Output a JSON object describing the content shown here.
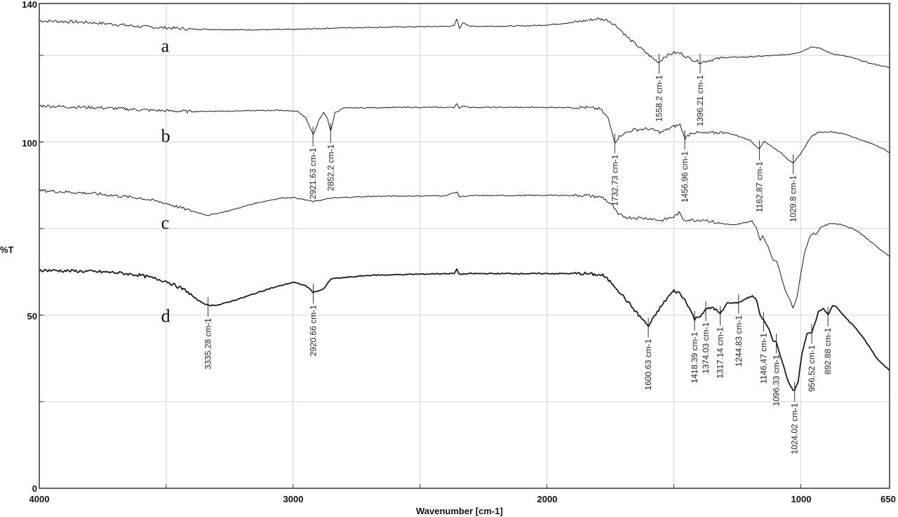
{
  "chart_data": {
    "type": "line",
    "title": "",
    "xlabel": "Wavenumber [cm-1]",
    "ylabel": "%T",
    "xlim": [
      4000,
      650
    ],
    "ylim": [
      0,
      140
    ],
    "x_reversed": true,
    "grid": true,
    "x_ticks": [
      4000,
      3000,
      2000,
      1000,
      650
    ],
    "x_minor_ticks": [
      3500,
      2500,
      1500
    ],
    "y_ticks": [
      0,
      50,
      100,
      140
    ],
    "y_grid": [
      25,
      50,
      75,
      100,
      125
    ],
    "series": [
      {
        "name": "a",
        "stroke_width": 1,
        "points": [
          [
            4000,
            135
          ],
          [
            3900,
            134.8
          ],
          [
            3800,
            134.5
          ],
          [
            3700,
            134
          ],
          [
            3600,
            133.3
          ],
          [
            3500,
            133
          ],
          [
            3400,
            132.6
          ],
          [
            3200,
            132.4
          ],
          [
            3000,
            132.5
          ],
          [
            2800,
            133
          ],
          [
            2600,
            133.2
          ],
          [
            2400,
            133.4
          ],
          [
            2365,
            133.6
          ],
          [
            2355,
            135.5
          ],
          [
            2345,
            132.8
          ],
          [
            2330,
            134.5
          ],
          [
            2300,
            133.4
          ],
          [
            2100,
            133.5
          ],
          [
            2000,
            133.8
          ],
          [
            1900,
            134.5
          ],
          [
            1800,
            135.6
          ],
          [
            1760,
            135.2
          ],
          [
            1720,
            133.2
          ],
          [
            1680,
            130
          ],
          [
            1630,
            127
          ],
          [
            1580,
            124
          ],
          [
            1558,
            123
          ],
          [
            1540,
            124.5
          ],
          [
            1500,
            125.8
          ],
          [
            1470,
            125.5
          ],
          [
            1440,
            124.2
          ],
          [
            1396,
            123
          ],
          [
            1360,
            123.6
          ],
          [
            1300,
            124.4
          ],
          [
            1200,
            124.6
          ],
          [
            1100,
            125
          ],
          [
            1050,
            125.3
          ],
          [
            1000,
            126
          ],
          [
            960,
            127.5
          ],
          [
            930,
            127.2
          ],
          [
            880,
            125.6
          ],
          [
            800,
            124.4
          ],
          [
            730,
            122.8
          ],
          [
            650,
            121.5
          ]
        ],
        "label": {
          "text": "a",
          "wavenumber": 3520,
          "t": 126
        }
      },
      {
        "name": "b",
        "stroke_width": 1,
        "points": [
          [
            4000,
            110.5
          ],
          [
            3900,
            110.2
          ],
          [
            3800,
            110
          ],
          [
            3700,
            109.7
          ],
          [
            3600,
            109.3
          ],
          [
            3500,
            109
          ],
          [
            3400,
            108.8
          ],
          [
            3200,
            109
          ],
          [
            3050,
            109.2
          ],
          [
            2980,
            108.8
          ],
          [
            2950,
            107
          ],
          [
            2921,
            102
          ],
          [
            2900,
            106
          ],
          [
            2880,
            108.5
          ],
          [
            2865,
            107
          ],
          [
            2852,
            103
          ],
          [
            2835,
            108.5
          ],
          [
            2800,
            109.8
          ],
          [
            2600,
            110
          ],
          [
            2400,
            110
          ],
          [
            2365,
            110
          ],
          [
            2355,
            111.2
          ],
          [
            2345,
            109.6
          ],
          [
            2330,
            110.5
          ],
          [
            2300,
            110
          ],
          [
            2000,
            110
          ],
          [
            1850,
            110
          ],
          [
            1790,
            109.5
          ],
          [
            1760,
            107
          ],
          [
            1732,
            100
          ],
          [
            1710,
            102
          ],
          [
            1660,
            103.5
          ],
          [
            1600,
            103.8
          ],
          [
            1550,
            102.8
          ],
          [
            1500,
            104.5
          ],
          [
            1475,
            105
          ],
          [
            1456,
            101
          ],
          [
            1430,
            102.8
          ],
          [
            1380,
            102.5
          ],
          [
            1300,
            102.8
          ],
          [
            1250,
            101.8
          ],
          [
            1200,
            100.5
          ],
          [
            1162,
            98
          ],
          [
            1145,
            100.3
          ],
          [
            1120,
            99
          ],
          [
            1080,
            97
          ],
          [
            1050,
            95
          ],
          [
            1029,
            94
          ],
          [
            1000,
            96.5
          ],
          [
            960,
            101.5
          ],
          [
            930,
            102.8
          ],
          [
            880,
            103
          ],
          [
            820,
            102.2
          ],
          [
            760,
            100.5
          ],
          [
            700,
            99
          ],
          [
            650,
            97
          ]
        ],
        "label": {
          "text": "b",
          "wavenumber": 3520,
          "t": 100
        }
      },
      {
        "name": "c",
        "stroke_width": 1,
        "points": [
          [
            4000,
            86
          ],
          [
            3900,
            85.6
          ],
          [
            3800,
            85.2
          ],
          [
            3700,
            84.5
          ],
          [
            3600,
            83.8
          ],
          [
            3500,
            82.3
          ],
          [
            3420,
            80.5
          ],
          [
            3335,
            78.8
          ],
          [
            3250,
            80.2
          ],
          [
            3150,
            82.3
          ],
          [
            3050,
            83.8
          ],
          [
            3000,
            84
          ],
          [
            2920,
            82.8
          ],
          [
            2850,
            83.8
          ],
          [
            2700,
            84.3
          ],
          [
            2400,
            84.5
          ],
          [
            2355,
            85.6
          ],
          [
            2345,
            84.2
          ],
          [
            2300,
            84.5
          ],
          [
            2000,
            84.6
          ],
          [
            1850,
            84.6
          ],
          [
            1780,
            84
          ],
          [
            1740,
            81.5
          ],
          [
            1720,
            79
          ],
          [
            1680,
            78.2
          ],
          [
            1600,
            78
          ],
          [
            1550,
            77.3
          ],
          [
            1500,
            78.4
          ],
          [
            1480,
            79.5
          ],
          [
            1460,
            77.6
          ],
          [
            1420,
            77.4
          ],
          [
            1380,
            77.6
          ],
          [
            1330,
            76.6
          ],
          [
            1260,
            76
          ],
          [
            1220,
            76.7
          ],
          [
            1192,
            77.2
          ],
          [
            1175,
            75.2
          ],
          [
            1160,
            71.6
          ],
          [
            1150,
            73
          ],
          [
            1130,
            70
          ],
          [
            1110,
            66
          ],
          [
            1095,
            65.7
          ],
          [
            1080,
            62
          ],
          [
            1060,
            57
          ],
          [
            1040,
            54
          ],
          [
            1030,
            52
          ],
          [
            1015,
            55
          ],
          [
            1000,
            62
          ],
          [
            985,
            68
          ],
          [
            965,
            72.5
          ],
          [
            950,
            73.8
          ],
          [
            940,
            73.2
          ],
          [
            920,
            75.5
          ],
          [
            880,
            76.5
          ],
          [
            840,
            76.2
          ],
          [
            780,
            74.5
          ],
          [
            720,
            71
          ],
          [
            680,
            68.5
          ],
          [
            650,
            67
          ]
        ],
        "label": {
          "text": "c",
          "wavenumber": 3520,
          "t": 75
        }
      },
      {
        "name": "d",
        "stroke_width": 1.8,
        "points": [
          [
            4000,
            63
          ],
          [
            3900,
            62.8
          ],
          [
            3800,
            62.6
          ],
          [
            3700,
            62.3
          ],
          [
            3600,
            61.5
          ],
          [
            3500,
            59.8
          ],
          [
            3420,
            57
          ],
          [
            3380,
            54.5
          ],
          [
            3335,
            52.8
          ],
          [
            3290,
            53
          ],
          [
            3200,
            55
          ],
          [
            3100,
            57.5
          ],
          [
            3000,
            59.5
          ],
          [
            2950,
            58.5
          ],
          [
            2920,
            56.6
          ],
          [
            2880,
            57.5
          ],
          [
            2850,
            60.5
          ],
          [
            2700,
            61.5
          ],
          [
            2400,
            62
          ],
          [
            2365,
            62
          ],
          [
            2355,
            63.2
          ],
          [
            2345,
            61.8
          ],
          [
            2300,
            62
          ],
          [
            2000,
            62
          ],
          [
            1850,
            62
          ],
          [
            1780,
            61.5
          ],
          [
            1740,
            59
          ],
          [
            1700,
            55.5
          ],
          [
            1650,
            51
          ],
          [
            1600,
            46.8
          ],
          [
            1560,
            51.5
          ],
          [
            1520,
            55.5
          ],
          [
            1500,
            57
          ],
          [
            1480,
            56.5
          ],
          [
            1450,
            53.8
          ],
          [
            1418,
            48.8
          ],
          [
            1395,
            50
          ],
          [
            1374,
            51.6
          ],
          [
            1345,
            52.3
          ],
          [
            1317,
            50.2
          ],
          [
            1290,
            53.5
          ],
          [
            1244,
            53.6
          ],
          [
            1210,
            55
          ],
          [
            1190,
            55.5
          ],
          [
            1175,
            54.5
          ],
          [
            1160,
            50
          ],
          [
            1146,
            48.5
          ],
          [
            1125,
            46
          ],
          [
            1110,
            42.5
          ],
          [
            1096,
            42.2
          ],
          [
            1075,
            37
          ],
          [
            1050,
            31
          ],
          [
            1030,
            28.2
          ],
          [
            1024,
            28.3
          ],
          [
            1010,
            31
          ],
          [
            995,
            39
          ],
          [
            975,
            44.8
          ],
          [
            956,
            45
          ],
          [
            945,
            47.5
          ],
          [
            930,
            51
          ],
          [
            910,
            51.8
          ],
          [
            892,
            50
          ],
          [
            875,
            52.8
          ],
          [
            860,
            52.5
          ],
          [
            820,
            49
          ],
          [
            780,
            46
          ],
          [
            740,
            42
          ],
          [
            700,
            37.5
          ],
          [
            650,
            34
          ]
        ],
        "label": {
          "text": "d",
          "wavenumber": 3520,
          "t": 48
        }
      }
    ],
    "peak_annotations": [
      {
        "series": "a",
        "wavenumber": 1558.2,
        "t": 123,
        "text": "1558.2 cm-1"
      },
      {
        "series": "a",
        "wavenumber": 1396.21,
        "t": 123,
        "text": "1396.21 cm-1"
      },
      {
        "series": "b",
        "wavenumber": 2921.63,
        "t": 102,
        "text": "2921.63 cm-1"
      },
      {
        "series": "b",
        "wavenumber": 2852.2,
        "t": 103,
        "text": "2852.2 cm-1"
      },
      {
        "series": "b",
        "wavenumber": 1732.73,
        "t": 100,
        "text": "1732.73 cm-1"
      },
      {
        "series": "b",
        "wavenumber": 1456.96,
        "t": 101,
        "text": "1456.96 cm-1"
      },
      {
        "series": "b",
        "wavenumber": 1162.87,
        "t": 98,
        "text": "1162.87 cm-1"
      },
      {
        "series": "b",
        "wavenumber": 1029.8,
        "t": 94,
        "text": "1029.8 cm-1"
      },
      {
        "series": "d",
        "wavenumber": 3335.28,
        "t": 52.8,
        "text": "3335.28 cm-1"
      },
      {
        "series": "d",
        "wavenumber": 2920.66,
        "t": 56.6,
        "text": "2920.66 cm-1"
      },
      {
        "series": "d",
        "wavenumber": 1600.63,
        "t": 46.8,
        "text": "1600.63 cm-1"
      },
      {
        "series": "d",
        "wavenumber": 1418.39,
        "t": 48.8,
        "text": "1418.39 cm-1"
      },
      {
        "series": "d",
        "wavenumber": 1374.03,
        "t": 51.6,
        "text": "1374.03 cm-1"
      },
      {
        "series": "d",
        "wavenumber": 1317.14,
        "t": 50.2,
        "text": "1317.14 cm-1"
      },
      {
        "series": "d",
        "wavenumber": 1244.83,
        "t": 53.6,
        "text": "1244.83 cm-1"
      },
      {
        "series": "d",
        "wavenumber": 1146.47,
        "t": 48.5,
        "text": "1146.47 cm-1"
      },
      {
        "series": "d",
        "wavenumber": 1096.33,
        "t": 42.2,
        "text": "1096.33 cm-1"
      },
      {
        "series": "d",
        "wavenumber": 1024.02,
        "t": 28.3,
        "text": "1024.02 cm-1"
      },
      {
        "series": "d",
        "wavenumber": 956.52,
        "t": 45,
        "text": "956.52 cm-1"
      },
      {
        "series": "d",
        "wavenumber": 892.88,
        "t": 50,
        "text": "892.88 cm-1"
      }
    ]
  },
  "axes": {
    "x_title": "Wavenumber [cm-1]",
    "y_title": "%T",
    "x_tick_labels": [
      "4000",
      "3000",
      "2000",
      "1000",
      "650"
    ],
    "y_tick_labels": [
      "140",
      "100",
      "50",
      "0"
    ]
  },
  "colors": {
    "curve": "#1a1a1a",
    "grid": "#d4d4d4",
    "frame": "#333333",
    "background": "#ffffff"
  }
}
